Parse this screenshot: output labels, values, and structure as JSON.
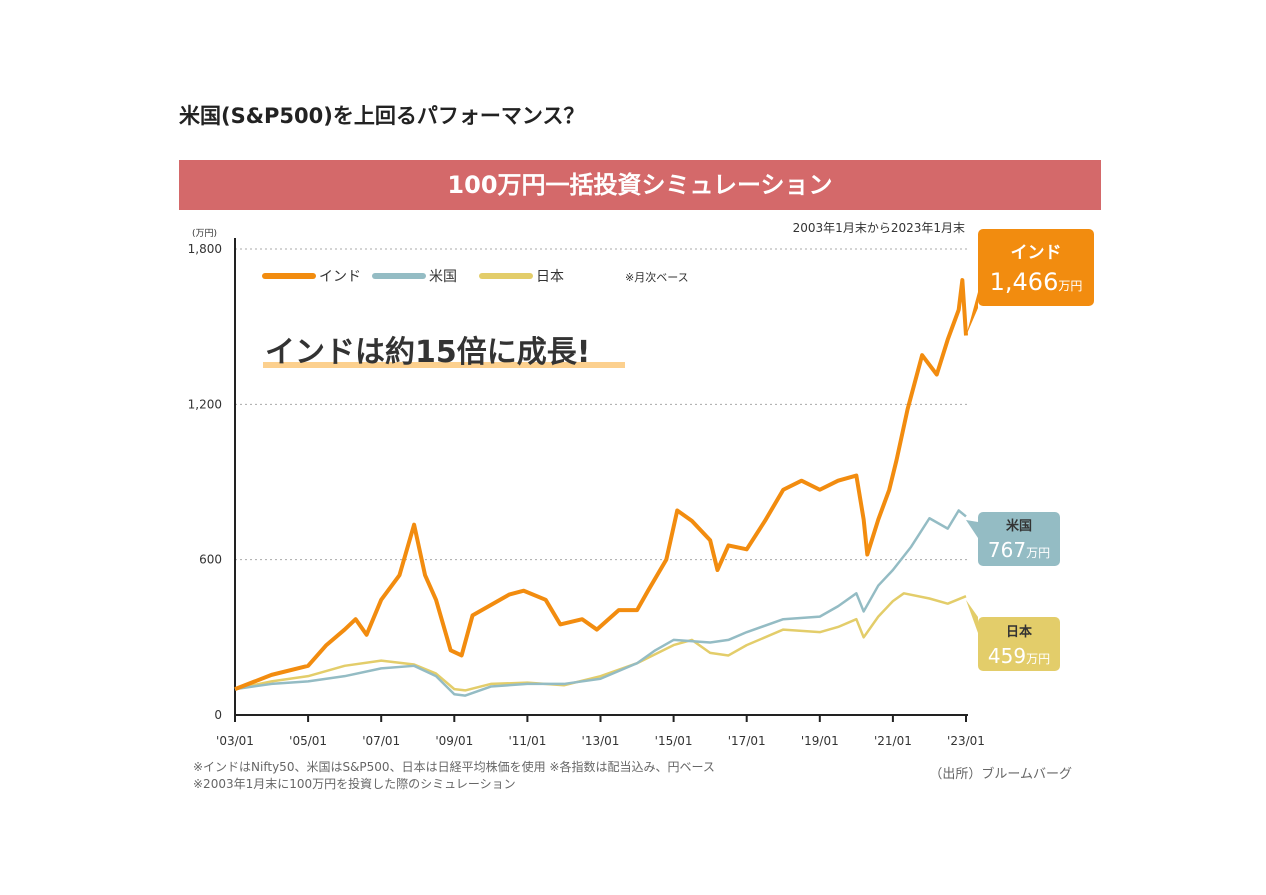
{
  "page_title": "米国(S&P500)を上回るパフォーマンス？",
  "chart_data": {
    "type": "line",
    "title": "100万円一括投資シミュレーション",
    "period": "2003年1月末から2023年1月末",
    "ylabel": "(万円)",
    "ylim": [
      0,
      1800
    ],
    "yticks": [
      0,
      600,
      1200,
      1800
    ],
    "ytick_labels": [
      "0",
      "600",
      "1,200",
      "1,800"
    ],
    "xlim": [
      2003,
      2023
    ],
    "xticks": [
      2003,
      2005,
      2007,
      2009,
      2011,
      2013,
      2015,
      2017,
      2019,
      2021,
      2023
    ],
    "xtick_labels": [
      "'03/01",
      "'05/01",
      "'07/01",
      "'09/01",
      "'11/01",
      "'13/01",
      "'15/01",
      "'17/01",
      "'19/01",
      "'21/01",
      "'23/01"
    ],
    "grid": "horizontal dotted",
    "legend_position": "top-left",
    "legend_note": "※月次ベース",
    "annotation": "インドは約15倍に成長!",
    "series": [
      {
        "name": "インド",
        "color": "#f28c0f",
        "end_value": "1,466",
        "unit": "万円",
        "x": [
          2003,
          2004,
          2005,
          2005.5,
          2006,
          2006.3,
          2006.6,
          2007,
          2007.5,
          2007.9,
          2008.2,
          2008.5,
          2008.9,
          2009.2,
          2009.5,
          2010,
          2010.5,
          2010.9,
          2011.5,
          2011.9,
          2012.5,
          2012.9,
          2013.5,
          2014,
          2014.3,
          2014.8,
          2015.1,
          2015.5,
          2016,
          2016.2,
          2016.5,
          2017,
          2017.5,
          2018,
          2018.5,
          2019,
          2019.5,
          2020,
          2020.2,
          2020.3,
          2020.6,
          2020.9,
          2021.1,
          2021.4,
          2021.8,
          2022.2,
          2022.5,
          2022.8,
          2022.9,
          2023
        ],
        "y": [
          100,
          155,
          190,
          270,
          330,
          370,
          310,
          445,
          540,
          735,
          540,
          445,
          250,
          230,
          385,
          425,
          465,
          480,
          445,
          350,
          370,
          330,
          405,
          405,
          480,
          600,
          790,
          750,
          675,
          560,
          655,
          640,
          750,
          870,
          905,
          870,
          905,
          925,
          755,
          620,
          755,
          870,
          985,
          1180,
          1390,
          1315,
          1450,
          1565,
          1680,
          1466
        ]
      },
      {
        "name": "米国",
        "color": "#94bcc4",
        "end_value": "767",
        "unit": "万円",
        "x": [
          2003,
          2004,
          2005,
          2006,
          2007,
          2007.9,
          2008.5,
          2009,
          2009.3,
          2010,
          2011,
          2012,
          2013,
          2014,
          2014.5,
          2015,
          2016,
          2016.5,
          2017,
          2018,
          2019,
          2019.5,
          2020,
          2020.2,
          2020.6,
          2021,
          2021.5,
          2022,
          2022.5,
          2022.8,
          2023
        ],
        "y": [
          100,
          120,
          130,
          150,
          180,
          190,
          150,
          80,
          75,
          110,
          120,
          120,
          140,
          200,
          250,
          290,
          280,
          290,
          320,
          370,
          380,
          420,
          470,
          400,
          500,
          560,
          650,
          760,
          720,
          790,
          767
        ]
      },
      {
        "name": "日本",
        "color": "#e3cd6a",
        "end_value": "459",
        "unit": "万円",
        "x": [
          2003,
          2004,
          2005,
          2006,
          2007,
          2007.9,
          2008.5,
          2009,
          2009.3,
          2010,
          2011,
          2012,
          2013,
          2014,
          2015,
          2015.5,
          2016,
          2016.5,
          2017,
          2018,
          2019,
          2019.5,
          2020,
          2020.2,
          2020.6,
          2021,
          2021.3,
          2022,
          2022.5,
          2023
        ],
        "y": [
          100,
          130,
          150,
          190,
          210,
          195,
          160,
          100,
          95,
          120,
          125,
          115,
          150,
          200,
          270,
          290,
          240,
          230,
          270,
          330,
          320,
          340,
          370,
          300,
          380,
          440,
          470,
          450,
          430,
          459
        ]
      }
    ],
    "notes": [
      "※インドはNifty50、米国はS&P500、日本は日経平均株価を使用 ※各指数は配当込み、円ベース",
      "※2003年1月末に100万円を投資した際のシミュレーション"
    ],
    "source": "（出所）ブルームバーグ"
  }
}
